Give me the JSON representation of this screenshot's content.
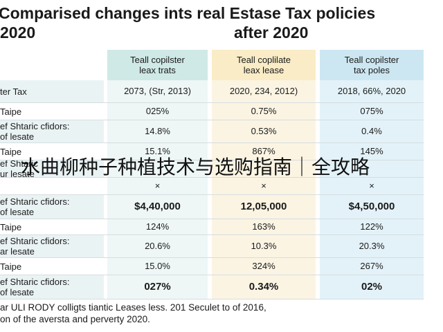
{
  "title": {
    "line1": "Comparised changes ints real Estase Tax policies",
    "line2_left": "2020",
    "line2_right": "after 2020"
  },
  "columns": [
    {
      "line1": "Teall copilster",
      "line2": "leax trats"
    },
    {
      "line1": "Teall coplilate",
      "line2": "leax lease"
    },
    {
      "line1": "Teall copilster",
      "line2": "tax poles"
    }
  ],
  "rows": [
    {
      "label": [
        "ter Tax"
      ],
      "values": [
        "2073, (Str, 2013)",
        "2020, 234, 2012)",
        "2018, 66%, 2020"
      ],
      "shade": true,
      "bold": false
    },
    {
      "label": [
        "Taipe"
      ],
      "values": [
        "025%",
        "0.75%",
        "075%"
      ],
      "shade": false,
      "bold": false
    },
    {
      "label": [
        "ef Shtaric cfidors:",
        "of lesate"
      ],
      "values": [
        "14.8%",
        "0.53%",
        "0.4%"
      ],
      "shade": true,
      "bold": false
    },
    {
      "label": [
        "Taipe"
      ],
      "values": [
        "15.1%",
        "867%",
        "145%"
      ],
      "shade": false,
      "bold": false
    },
    {
      "label": [
        "ef Shtaric",
        "ur lesate"
      ],
      "values": [
        "",
        "",
        ""
      ],
      "shade": true,
      "bold": false
    },
    {
      "label": [
        ""
      ],
      "values": [
        "×",
        "×",
        "×"
      ],
      "shade": false,
      "bold": false
    },
    {
      "label": [
        "ef Shtaric cfidors:",
        "of lesate"
      ],
      "values": [
        "$4,40,000",
        "12,05,000",
        "$4,50,000"
      ],
      "shade": true,
      "bold": true
    },
    {
      "label": [
        "Taipe"
      ],
      "values": [
        "124%",
        "163%",
        "122%"
      ],
      "shade": false,
      "bold": false
    },
    {
      "label": [
        "ef Shtaric cfidors:",
        "ar lesate"
      ],
      "values": [
        "20.6%",
        "10.3%",
        "20.3%"
      ],
      "shade": true,
      "bold": false
    },
    {
      "label": [
        "Taipe"
      ],
      "values": [
        "15.0%",
        "324%",
        "267%"
      ],
      "shade": false,
      "bold": false
    },
    {
      "label": [
        "ef Shtaric cfidors:",
        "of lesate"
      ],
      "values": [
        "027%",
        "0.34%",
        "02%"
      ],
      "shade": true,
      "bold": true
    }
  ],
  "footer": {
    "line1": "ar ULI RODY colligts tiantic Leases less. 201 Seculet to of 2016,",
    "line2": "on of the aversta and perverty 2020."
  },
  "overlay_text": "水曲柳种子种植技术与选购指南｜全攻略"
}
